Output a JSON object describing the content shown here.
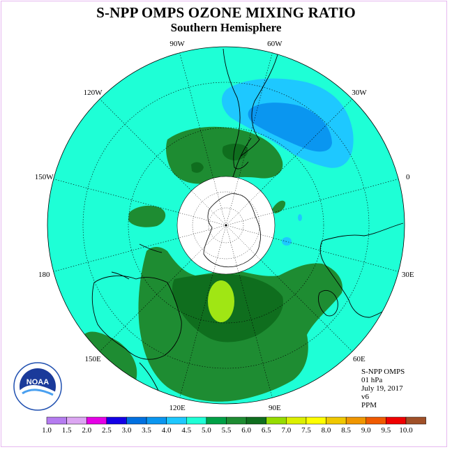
{
  "title": "S-NPP OMPS OZONE MIXING RATIO",
  "subtitle": "Southern Hemisphere",
  "longitude_labels": [
    {
      "text": "90W",
      "lon": -90
    },
    {
      "text": "60W",
      "lon": -60
    },
    {
      "text": "30W",
      "lon": -30
    },
    {
      "text": "0",
      "lon": 0
    },
    {
      "text": "30E",
      "lon": 30
    },
    {
      "text": "60E",
      "lon": 60
    },
    {
      "text": "90E",
      "lon": 90
    },
    {
      "text": "120E",
      "lon": 120
    },
    {
      "text": "150E",
      "lon": 150
    },
    {
      "text": "180",
      "lon": 180
    },
    {
      "text": "150W",
      "lon": -150
    },
    {
      "text": "120W",
      "lon": -120
    }
  ],
  "info": {
    "instrument": "S-NPP OMPS",
    "level": "01 hPa",
    "date": "July 19, 2017",
    "version": "v6",
    "units": "PPM"
  },
  "logo_text": "NOAA",
  "colorbar": {
    "ticks": [
      "1.0",
      "1.5",
      "2.0",
      "2.5",
      "3.0",
      "3.5",
      "4.0",
      "4.5",
      "5.0",
      "5.5",
      "6.0",
      "6.5",
      "7.0",
      "7.5",
      "8.0",
      "8.5",
      "9.0",
      "9.5",
      "10.0"
    ],
    "colors": [
      "#b57cf0",
      "#dca6f2",
      "#e600e6",
      "#1400e6",
      "#0070e0",
      "#0a96f0",
      "#1ec8ff",
      "#1effd6",
      "#00a046",
      "#1e8c32",
      "#0f6e1e",
      "#96dc00",
      "#dcf000",
      "#ffff00",
      "#f0c800",
      "#f09600",
      "#f05a00",
      "#f00000",
      "#a05028"
    ]
  },
  "map_colors": {
    "background": "#1effd6",
    "green": "#1e8c32",
    "dark_green": "#0f6e1e",
    "lime": "#a0e614",
    "light_blue": "#1ec8ff",
    "blue": "#0a96f0",
    "pole_cap": "#ffffff"
  }
}
